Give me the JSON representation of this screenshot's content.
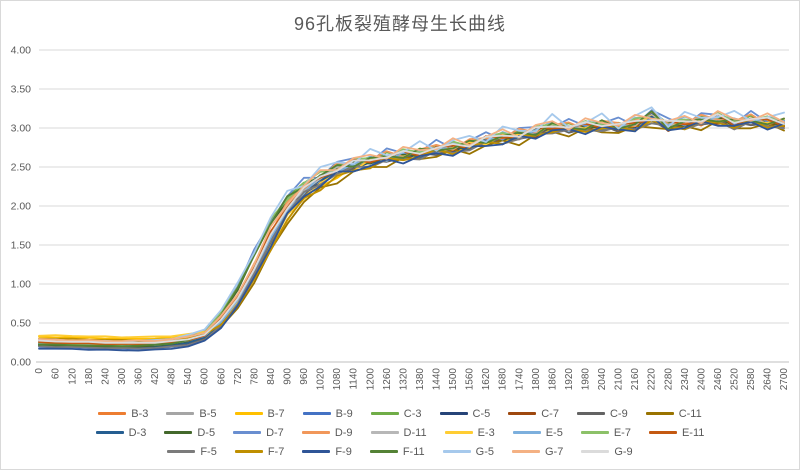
{
  "chart_data": {
    "type": "line",
    "title": "96孔板裂殖酵母生长曲线",
    "xlabel": "",
    "ylabel": "",
    "x_categories": [
      0,
      60,
      120,
      180,
      240,
      300,
      360,
      420,
      480,
      540,
      600,
      660,
      720,
      780,
      840,
      900,
      960,
      1020,
      1080,
      1140,
      1200,
      1260,
      1320,
      1380,
      1440,
      1500,
      1560,
      1620,
      1680,
      1740,
      1800,
      1860,
      1920,
      1980,
      2040,
      2100,
      2160,
      2220,
      2280,
      2340,
      2400,
      2460,
      2520,
      2580,
      2640,
      2700
    ],
    "y_ticks": [
      "0.00",
      "0.50",
      "1.00",
      "1.50",
      "2.00",
      "2.50",
      "3.00",
      "3.50",
      "4.00"
    ],
    "ylim": [
      0,
      4
    ],
    "grid": "horizontal-major",
    "legend_position": "bottom",
    "colors": {
      "grid": "#D9D9D9",
      "axis": "#BFBFBF",
      "text": "#595959",
      "title": "#595959",
      "border": "#D9D9D9",
      "background": "#FFFFFF"
    },
    "tracks": {
      "mid": [
        0.23,
        0.225,
        0.22,
        0.215,
        0.21,
        0.205,
        0.205,
        0.21,
        0.225,
        0.25,
        0.31,
        0.5,
        0.78,
        1.15,
        1.58,
        1.95,
        2.18,
        2.33,
        2.44,
        2.51,
        2.56,
        2.6,
        2.63,
        2.66,
        2.7,
        2.73,
        2.76,
        2.82,
        2.86,
        2.88,
        2.93,
        3.0,
        2.98,
        3.0,
        3.02,
        3.0,
        3.03,
        3.1,
        3.02,
        3.05,
        3.07,
        3.1,
        3.05,
        3.08,
        3.06,
        3.05
      ],
      "early": [
        0.235,
        0.23,
        0.225,
        0.22,
        0.215,
        0.215,
        0.22,
        0.23,
        0.25,
        0.29,
        0.37,
        0.62,
        0.95,
        1.38,
        1.8,
        2.1,
        2.28,
        2.4,
        2.5,
        2.56,
        2.6,
        2.64,
        2.67,
        2.7,
        2.74,
        2.77,
        2.8,
        2.86,
        2.9,
        2.92,
        2.97,
        3.04,
        3.01,
        3.03,
        3.06,
        3.03,
        3.07,
        3.18,
        3.05,
        3.08,
        3.1,
        3.14,
        3.08,
        3.11,
        3.09,
        3.08
      ],
      "late_high_start": [
        0.3,
        0.3,
        0.295,
        0.29,
        0.285,
        0.28,
        0.28,
        0.285,
        0.295,
        0.315,
        0.35,
        0.48,
        0.72,
        1.05,
        1.45,
        1.82,
        2.08,
        2.24,
        2.36,
        2.45,
        2.52,
        2.57,
        2.61,
        2.65,
        2.68,
        2.71,
        2.74,
        2.8,
        2.84,
        2.86,
        2.91,
        2.98,
        2.96,
        2.98,
        3.0,
        2.98,
        3.01,
        3.08,
        3.0,
        3.03,
        3.05,
        3.08,
        3.03,
        3.06,
        3.04,
        3.03
      ],
      "low_start": [
        0.195,
        0.19,
        0.185,
        0.18,
        0.175,
        0.17,
        0.17,
        0.175,
        0.19,
        0.22,
        0.29,
        0.46,
        0.74,
        1.1,
        1.52,
        1.9,
        2.14,
        2.3,
        2.42,
        2.49,
        2.54,
        2.58,
        2.61,
        2.64,
        2.68,
        2.71,
        2.74,
        2.8,
        2.84,
        2.87,
        2.92,
        2.99,
        2.97,
        2.99,
        3.01,
        2.99,
        3.02,
        3.12,
        3.01,
        3.04,
        3.06,
        3.09,
        3.04,
        3.07,
        3.05,
        3.04
      ],
      "mid_high": [
        0.24,
        0.235,
        0.23,
        0.225,
        0.22,
        0.22,
        0.22,
        0.225,
        0.24,
        0.27,
        0.33,
        0.54,
        0.82,
        1.22,
        1.65,
        2.0,
        2.22,
        2.36,
        2.47,
        2.54,
        2.58,
        2.62,
        2.65,
        2.68,
        2.72,
        2.75,
        2.78,
        2.84,
        2.88,
        2.9,
        2.95,
        3.02,
        2.99,
        3.01,
        3.04,
        3.01,
        3.05,
        3.13,
        3.03,
        3.06,
        3.08,
        3.12,
        3.06,
        3.1,
        3.07,
        3.06
      ]
    },
    "series": [
      {
        "name": "B-3",
        "color": "#ED7D31",
        "track": "mid_high",
        "offset": 0.0,
        "amp": 0.05,
        "phase": 0.5
      },
      {
        "name": "B-5",
        "color": "#A5A5A5",
        "track": "mid",
        "offset": 0.01,
        "amp": 0.04,
        "phase": 1.2
      },
      {
        "name": "B-7",
        "color": "#FFC000",
        "track": "late_high_start",
        "offset": 0.02,
        "amp": 0.05,
        "phase": 2.0
      },
      {
        "name": "B-9",
        "color": "#4472C4",
        "track": "low_start",
        "offset": 0.0,
        "amp": 0.05,
        "phase": 2.8
      },
      {
        "name": "C-3",
        "color": "#70AD47",
        "track": "early",
        "offset": 0.0,
        "amp": 0.05,
        "phase": 3.5
      },
      {
        "name": "C-5",
        "color": "#264478",
        "track": "low_start",
        "offset": 0.02,
        "amp": 0.04,
        "phase": 4.2
      },
      {
        "name": "C-7",
        "color": "#9E480E",
        "track": "mid_high",
        "offset": -0.02,
        "amp": 0.05,
        "phase": 5.0
      },
      {
        "name": "C-9",
        "color": "#636363",
        "track": "mid",
        "offset": -0.01,
        "amp": 0.04,
        "phase": 5.8
      },
      {
        "name": "C-11",
        "color": "#997300",
        "track": "late_high_start",
        "offset": -0.03,
        "amp": 0.05,
        "phase": 0.9
      },
      {
        "name": "D-3",
        "color": "#255E91",
        "track": "low_start",
        "offset": 0.03,
        "amp": 0.05,
        "phase": 1.7
      },
      {
        "name": "D-5",
        "color": "#43682B",
        "track": "early",
        "offset": -0.02,
        "amp": 0.04,
        "phase": 2.4
      },
      {
        "name": "D-7",
        "color": "#698ED0",
        "track": "early",
        "offset": 0.03,
        "amp": 0.08,
        "phase": 3.1
      },
      {
        "name": "D-9",
        "color": "#F1975A",
        "track": "mid_high",
        "offset": 0.03,
        "amp": 0.06,
        "phase": 3.9
      },
      {
        "name": "D-11",
        "color": "#B7B7B7",
        "track": "mid",
        "offset": 0.03,
        "amp": 0.04,
        "phase": 4.6
      },
      {
        "name": "E-3",
        "color": "#FFCD33",
        "track": "late_high_start",
        "offset": 0.04,
        "amp": 0.05,
        "phase": 5.3
      },
      {
        "name": "E-5",
        "color": "#7CAFDD",
        "track": "low_start",
        "offset": 0.05,
        "amp": 0.06,
        "phase": 0.2
      },
      {
        "name": "E-7",
        "color": "#8CC168",
        "track": "early",
        "offset": 0.01,
        "amp": 0.05,
        "phase": 1.0
      },
      {
        "name": "E-11",
        "color": "#C45911",
        "track": "mid_high",
        "offset": 0.01,
        "amp": 0.05,
        "phase": 1.9
      },
      {
        "name": "F-5",
        "color": "#7B7B7B",
        "track": "mid",
        "offset": -0.03,
        "amp": 0.04,
        "phase": 2.6
      },
      {
        "name": "F-7",
        "color": "#BF8F00",
        "track": "late_high_start",
        "offset": 0.0,
        "amp": 0.05,
        "phase": 3.3
      },
      {
        "name": "F-9",
        "color": "#2F5597",
        "track": "low_start",
        "offset": -0.02,
        "amp": 0.05,
        "phase": 4.1
      },
      {
        "name": "F-11",
        "color": "#548235",
        "track": "early",
        "offset": -0.01,
        "amp": 0.05,
        "phase": 4.9
      },
      {
        "name": "G-5",
        "color": "#A6C9EC",
        "track": "early",
        "offset": 0.05,
        "amp": 0.09,
        "phase": 5.6
      },
      {
        "name": "G-7",
        "color": "#F4B183",
        "track": "mid_high",
        "offset": 0.05,
        "amp": 0.07,
        "phase": 0.7
      },
      {
        "name": "G-9",
        "color": "#DBDBDB",
        "track": "mid",
        "offset": 0.04,
        "amp": 0.04,
        "phase": 1.5
      }
    ],
    "legend_rows": [
      [
        "B-3",
        "B-5",
        "B-7",
        "B-9",
        "C-3",
        "C-5",
        "C-7",
        "C-9",
        "C-11"
      ],
      [
        "D-3",
        "D-5",
        "D-7",
        "D-9",
        "D-11",
        "E-3",
        "E-5",
        "E-7",
        "E-11"
      ],
      [
        "F-5",
        "F-7",
        "F-9",
        "F-11",
        "G-5",
        "G-7",
        "G-9"
      ]
    ]
  }
}
